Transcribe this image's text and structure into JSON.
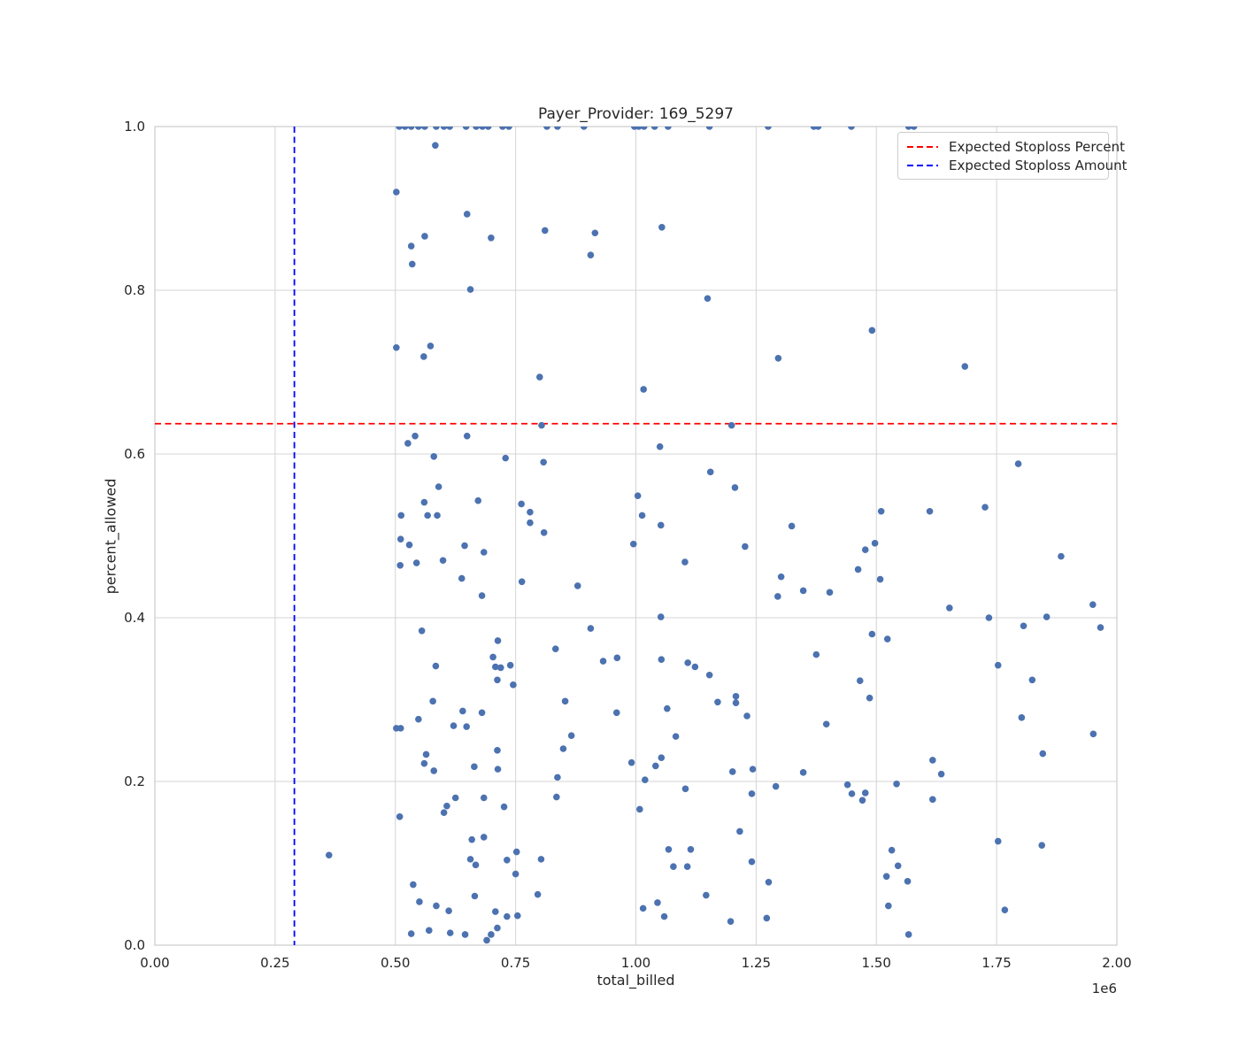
{
  "figure": {
    "title": "Payer_Provider: 169_5297",
    "xlabel": "total_billed",
    "ylabel": "percent_allowed",
    "x_offset_text": "1e6"
  },
  "legend": {
    "position": "upper right",
    "items": [
      {
        "label": "Expected Stoploss Percent",
        "color": "#ff0000",
        "linestyle": "dashed"
      },
      {
        "label": "Expected Stoploss Amount",
        "color": "#0000ff",
        "linestyle": "dashed"
      }
    ]
  },
  "colors": {
    "point": "#4c72b0",
    "grid": "#d4d4d4",
    "spine": "#cccccc",
    "text": "#262626",
    "hline": "#ff0000",
    "vline": "#0000ff",
    "background": "#ffffff"
  },
  "chart_data": {
    "type": "scatter",
    "title": "Payer_Provider: 169_5297",
    "xlabel": "total_billed",
    "ylabel": "percent_allowed",
    "x_unit_multiplier": "1e6",
    "xlim": [
      0.0,
      2.0
    ],
    "ylim": [
      0.0,
      1.0
    ],
    "grid": true,
    "legend_position": "upper right",
    "x_ticks": [
      {
        "v": 0.0,
        "label": "0.00"
      },
      {
        "v": 0.25,
        "label": "0.25"
      },
      {
        "v": 0.5,
        "label": "0.50"
      },
      {
        "v": 0.75,
        "label": "0.75"
      },
      {
        "v": 1.0,
        "label": "1.00"
      },
      {
        "v": 1.25,
        "label": "1.25"
      },
      {
        "v": 1.5,
        "label": "1.50"
      },
      {
        "v": 1.75,
        "label": "1.75"
      },
      {
        "v": 2.0,
        "label": "2.00"
      }
    ],
    "y_ticks": [
      {
        "v": 0.0,
        "label": "0.0"
      },
      {
        "v": 0.2,
        "label": "0.2"
      },
      {
        "v": 0.4,
        "label": "0.4"
      },
      {
        "v": 0.6,
        "label": "0.6"
      },
      {
        "v": 0.8,
        "label": "0.8"
      },
      {
        "v": 1.0,
        "label": "1.0"
      }
    ],
    "hline": {
      "y": 0.637,
      "color": "#ff0000",
      "label": "Expected Stoploss Percent"
    },
    "vline": {
      "x": 0.29,
      "color": "#0000ff",
      "label": "Expected Stoploss Amount"
    },
    "points": [
      [
        0.508,
        1.0
      ],
      [
        0.52,
        1.0
      ],
      [
        0.533,
        1.0
      ],
      [
        0.548,
        1.0
      ],
      [
        0.561,
        1.0
      ],
      [
        0.585,
        1.0
      ],
      [
        0.601,
        1.0
      ],
      [
        0.613,
        1.0
      ],
      [
        0.647,
        1.0
      ],
      [
        0.668,
        1.0
      ],
      [
        0.681,
        1.0
      ],
      [
        0.693,
        1.0
      ],
      [
        0.723,
        1.0
      ],
      [
        0.736,
        1.0
      ],
      [
        0.815,
        1.0
      ],
      [
        0.837,
        1.0
      ],
      [
        0.892,
        1.0
      ],
      [
        0.997,
        1.0
      ],
      [
        1.006,
        1.0
      ],
      [
        1.017,
        1.0
      ],
      [
        1.039,
        1.0
      ],
      [
        1.067,
        1.0
      ],
      [
        1.153,
        1.0
      ],
      [
        1.275,
        1.0
      ],
      [
        1.37,
        1.0
      ],
      [
        1.379,
        1.0
      ],
      [
        1.448,
        1.0
      ],
      [
        1.567,
        1.0
      ],
      [
        1.578,
        1.0
      ],
      [
        0.583,
        0.977
      ],
      [
        0.502,
        0.92
      ],
      [
        0.649,
        0.893
      ],
      [
        0.561,
        0.866
      ],
      [
        0.533,
        0.854
      ],
      [
        0.535,
        0.832
      ],
      [
        0.656,
        0.801
      ],
      [
        0.699,
        0.864
      ],
      [
        0.811,
        0.873
      ],
      [
        0.915,
        0.87
      ],
      [
        0.906,
        0.843
      ],
      [
        1.054,
        0.877
      ],
      [
        1.149,
        0.79
      ],
      [
        1.296,
        0.717
      ],
      [
        0.8,
        0.694
      ],
      [
        1.016,
        0.679
      ],
      [
        1.491,
        0.751
      ],
      [
        1.684,
        0.707
      ],
      [
        0.502,
        0.73
      ],
      [
        0.573,
        0.732
      ],
      [
        0.559,
        0.719
      ],
      [
        0.804,
        0.635
      ],
      [
        0.541,
        0.622
      ],
      [
        0.649,
        0.622
      ],
      [
        0.526,
        0.613
      ],
      [
        0.58,
        0.597
      ],
      [
        0.729,
        0.595
      ],
      [
        0.808,
        0.59
      ],
      [
        0.59,
        0.56
      ],
      [
        0.56,
        0.541
      ],
      [
        0.672,
        0.543
      ],
      [
        0.512,
        0.525
      ],
      [
        0.567,
        0.525
      ],
      [
        0.587,
        0.525
      ],
      [
        0.762,
        0.539
      ],
      [
        0.78,
        0.529
      ],
      [
        0.78,
        0.516
      ],
      [
        0.809,
        0.504
      ],
      [
        0.511,
        0.496
      ],
      [
        0.529,
        0.489
      ],
      [
        0.644,
        0.488
      ],
      [
        0.684,
        0.48
      ],
      [
        0.995,
        0.49
      ],
      [
        0.51,
        0.464
      ],
      [
        0.544,
        0.467
      ],
      [
        0.599,
        0.47
      ],
      [
        0.638,
        0.448
      ],
      [
        0.68,
        0.427
      ],
      [
        0.763,
        0.444
      ],
      [
        0.879,
        0.439
      ],
      [
        0.555,
        0.384
      ],
      [
        0.906,
        0.387
      ],
      [
        0.713,
        0.372
      ],
      [
        0.833,
        0.362
      ],
      [
        0.703,
        0.352
      ],
      [
        0.708,
        0.34
      ],
      [
        0.719,
        0.339
      ],
      [
        0.739,
        0.342
      ],
      [
        0.584,
        0.341
      ],
      [
        0.932,
        0.347
      ],
      [
        0.961,
        0.351
      ],
      [
        1.199,
        0.635
      ],
      [
        1.05,
        0.609
      ],
      [
        1.155,
        0.578
      ],
      [
        1.206,
        0.559
      ],
      [
        1.004,
        0.549
      ],
      [
        1.013,
        0.525
      ],
      [
        1.052,
        0.513
      ],
      [
        1.324,
        0.512
      ],
      [
        1.227,
        0.487
      ],
      [
        1.477,
        0.483
      ],
      [
        1.497,
        0.491
      ],
      [
        1.102,
        0.468
      ],
      [
        1.462,
        0.459
      ],
      [
        1.302,
        0.45
      ],
      [
        1.348,
        0.433
      ],
      [
        1.295,
        0.426
      ],
      [
        1.403,
        0.431
      ],
      [
        1.052,
        0.401
      ],
      [
        1.491,
        0.38
      ],
      [
        1.375,
        0.355
      ],
      [
        1.053,
        0.349
      ],
      [
        1.108,
        0.345
      ],
      [
        1.123,
        0.34
      ],
      [
        1.795,
        0.588
      ],
      [
        1.51,
        0.53
      ],
      [
        1.611,
        0.53
      ],
      [
        1.726,
        0.535
      ],
      [
        1.884,
        0.475
      ],
      [
        1.508,
        0.447
      ],
      [
        1.652,
        0.412
      ],
      [
        1.734,
        0.4
      ],
      [
        1.854,
        0.401
      ],
      [
        1.95,
        0.416
      ],
      [
        1.806,
        0.39
      ],
      [
        1.966,
        0.388
      ],
      [
        1.523,
        0.374
      ],
      [
        1.753,
        0.342
      ],
      [
        0.712,
        0.324
      ],
      [
        0.745,
        0.318
      ],
      [
        0.578,
        0.298
      ],
      [
        0.64,
        0.286
      ],
      [
        0.68,
        0.284
      ],
      [
        0.548,
        0.276
      ],
      [
        0.502,
        0.265
      ],
      [
        0.511,
        0.265
      ],
      [
        0.621,
        0.268
      ],
      [
        0.648,
        0.267
      ],
      [
        0.853,
        0.298
      ],
      [
        0.96,
        0.284
      ],
      [
        0.866,
        0.256
      ],
      [
        0.849,
        0.24
      ],
      [
        0.991,
        0.223
      ],
      [
        0.564,
        0.233
      ],
      [
        0.56,
        0.222
      ],
      [
        0.58,
        0.213
      ],
      [
        0.664,
        0.218
      ],
      [
        0.712,
        0.238
      ],
      [
        0.713,
        0.215
      ],
      [
        0.837,
        0.205
      ],
      [
        0.835,
        0.181
      ],
      [
        0.625,
        0.18
      ],
      [
        0.684,
        0.18
      ],
      [
        0.607,
        0.17
      ],
      [
        0.601,
        0.162
      ],
      [
        0.726,
        0.169
      ],
      [
        0.509,
        0.157
      ],
      [
        0.659,
        0.129
      ],
      [
        0.684,
        0.132
      ],
      [
        0.752,
        0.114
      ],
      [
        0.656,
        0.105
      ],
      [
        0.667,
        0.098
      ],
      [
        0.732,
        0.104
      ],
      [
        0.75,
        0.087
      ],
      [
        0.803,
        0.105
      ],
      [
        0.537,
        0.074
      ],
      [
        0.796,
        0.062
      ],
      [
        0.665,
        0.06
      ],
      [
        0.55,
        0.053
      ],
      [
        0.585,
        0.048
      ],
      [
        0.611,
        0.042
      ],
      [
        0.708,
        0.041
      ],
      [
        0.732,
        0.035
      ],
      [
        0.754,
        0.036
      ],
      [
        0.57,
        0.018
      ],
      [
        0.533,
        0.014
      ],
      [
        0.614,
        0.015
      ],
      [
        0.645,
        0.013
      ],
      [
        0.69,
        0.006
      ],
      [
        0.699,
        0.013
      ],
      [
        0.712,
        0.021
      ],
      [
        1.153,
        0.33
      ],
      [
        1.466,
        0.323
      ],
      [
        1.208,
        0.304
      ],
      [
        1.208,
        0.296
      ],
      [
        1.17,
        0.297
      ],
      [
        1.486,
        0.302
      ],
      [
        1.065,
        0.289
      ],
      [
        1.231,
        0.28
      ],
      [
        1.396,
        0.27
      ],
      [
        1.083,
        0.255
      ],
      [
        1.053,
        0.229
      ],
      [
        1.041,
        0.219
      ],
      [
        1.201,
        0.212
      ],
      [
        1.243,
        0.215
      ],
      [
        1.348,
        0.211
      ],
      [
        1.019,
        0.202
      ],
      [
        1.103,
        0.191
      ],
      [
        1.291,
        0.194
      ],
      [
        1.241,
        0.185
      ],
      [
        1.44,
        0.196
      ],
      [
        1.449,
        0.185
      ],
      [
        1.477,
        0.186
      ],
      [
        1.471,
        0.177
      ],
      [
        1.008,
        0.166
      ],
      [
        1.216,
        0.139
      ],
      [
        1.068,
        0.117
      ],
      [
        1.114,
        0.117
      ],
      [
        1.078,
        0.096
      ],
      [
        1.107,
        0.096
      ],
      [
        1.241,
        0.102
      ],
      [
        1.276,
        0.077
      ],
      [
        1.146,
        0.061
      ],
      [
        1.045,
        0.052
      ],
      [
        1.015,
        0.045
      ],
      [
        1.059,
        0.035
      ],
      [
        1.197,
        0.029
      ],
      [
        1.272,
        0.033
      ],
      [
        1.824,
        0.324
      ],
      [
        1.802,
        0.278
      ],
      [
        1.951,
        0.258
      ],
      [
        1.846,
        0.234
      ],
      [
        1.617,
        0.226
      ],
      [
        1.635,
        0.209
      ],
      [
        1.542,
        0.197
      ],
      [
        1.617,
        0.178
      ],
      [
        1.753,
        0.127
      ],
      [
        1.844,
        0.122
      ],
      [
        1.532,
        0.116
      ],
      [
        1.545,
        0.097
      ],
      [
        1.521,
        0.084
      ],
      [
        1.565,
        0.078
      ],
      [
        1.525,
        0.048
      ],
      [
        1.767,
        0.043
      ],
      [
        1.567,
        0.013
      ],
      [
        0.362,
        0.11
      ]
    ]
  }
}
